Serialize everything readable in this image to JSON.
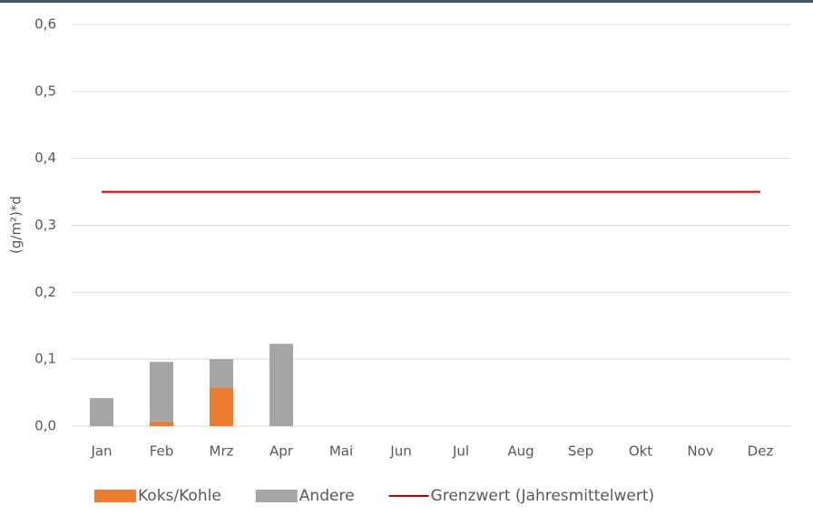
{
  "chart_data": {
    "type": "bar",
    "stacked": true,
    "ylabel": "(g/m²)*d",
    "categories": [
      "Jan",
      "Feb",
      "Mrz",
      "Apr",
      "Mai",
      "Jun",
      "Jul",
      "Aug",
      "Sep",
      "Okt",
      "Nov",
      "Dez"
    ],
    "series": [
      {
        "name": "Koks/Kohle",
        "color": "#ed7d31",
        "values": [
          0,
          0.007,
          0.058,
          0,
          null,
          null,
          null,
          null,
          null,
          null,
          null,
          null
        ]
      },
      {
        "name": "Andere",
        "color": "#a5a5a5",
        "values": [
          0.042,
          0.089,
          0.042,
          0.123,
          null,
          null,
          null,
          null,
          null,
          null,
          null,
          null
        ]
      },
      {
        "name": "Grenzwert (Jahresmittelwert)",
        "type": "line",
        "color": "#c00000",
        "values": [
          0.35,
          0.35,
          0.35,
          0.35,
          0.35,
          0.35,
          0.35,
          0.35,
          0.35,
          0.35,
          0.35,
          0.35
        ]
      }
    ],
    "ylim": [
      0,
      0.6
    ],
    "yticks": [
      {
        "value": 0,
        "label": "0,0"
      },
      {
        "value": 0.1,
        "label": "0,1"
      },
      {
        "value": 0.2,
        "label": "0,2"
      },
      {
        "value": 0.3,
        "label": "0,3"
      },
      {
        "value": 0.4,
        "label": "0,4"
      },
      {
        "value": 0.5,
        "label": "0,5"
      },
      {
        "value": 0.6,
        "label": "0,6"
      }
    ],
    "grid": true,
    "legend": "bottom"
  }
}
